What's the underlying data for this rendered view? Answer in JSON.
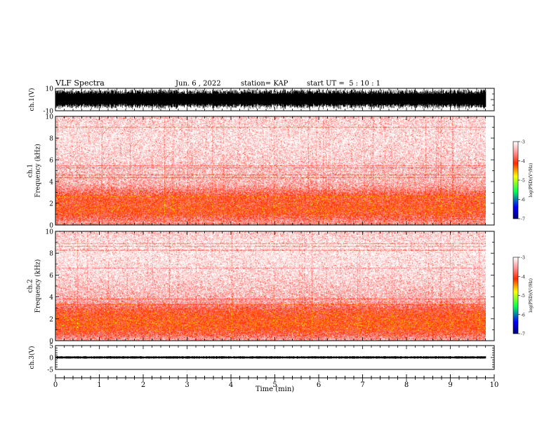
{
  "header": {
    "title": "VLF Spectra",
    "date": "Jun. 6 , 2022",
    "station": "station= KAP",
    "start": "start UT =  5 : 10 : 1"
  },
  "chart_data": [
    {
      "type": "line",
      "panel": "ch1-waveform",
      "ylabel": "ch.1(V)",
      "ylim": [
        -10,
        10
      ],
      "y_ticks": [
        "10",
        "-10"
      ],
      "x_range": [
        0,
        10
      ],
      "data_end_min": 9.8,
      "series": [
        {
          "values_range": [
            -10,
            10
          ],
          "description_values": "dense broadband noise saturating the full range"
        }
      ]
    },
    {
      "type": "heatmap",
      "panel": "ch1-spectrogram",
      "ylabel": "ch.1\nFrequency (kHz)",
      "ylim": [
        0,
        10
      ],
      "y_ticks": [
        "0",
        "2",
        "4",
        "6",
        "8",
        "10"
      ],
      "x_range": [
        0,
        9.8
      ],
      "profile_kHz": [
        0,
        0.5,
        1,
        1.5,
        2,
        2.5,
        3,
        3.5,
        4,
        5,
        6,
        7,
        8,
        9,
        10
      ],
      "profile_logPSD": [
        -3.4,
        -3.7,
        -3.95,
        -4.05,
        -3.95,
        -3.95,
        -3.75,
        -3.5,
        -3.35,
        -3.3,
        -3.2,
        -3.15,
        -3.1,
        -3.15,
        -3.2
      ],
      "colorbar": {
        "label": "log(PSD)(V²/Hz)",
        "min": -7,
        "max": -3,
        "ticks": [
          "-3",
          "-4",
          "-5",
          "-6",
          "-7"
        ]
      }
    },
    {
      "type": "heatmap",
      "panel": "ch2-spectrogram",
      "ylabel": "ch.2\nFrequency (kHz)",
      "ylim": [
        0,
        10
      ],
      "y_ticks": [
        "0",
        "2",
        "4",
        "6",
        "8",
        "10"
      ],
      "x_range": [
        0,
        9.8
      ],
      "profile_kHz": [
        0,
        0.5,
        1,
        1.5,
        2,
        2.5,
        3,
        3.5,
        4,
        5,
        6,
        7,
        8,
        9,
        10
      ],
      "profile_logPSD": [
        -3.4,
        -3.75,
        -4.0,
        -4.1,
        -4.05,
        -4.0,
        -3.8,
        -3.5,
        -3.35,
        -3.25,
        -3.15,
        -3.1,
        -3.05,
        -3.1,
        -3.2
      ],
      "colorbar": {
        "label": "log(PSD)(V²/Hz)",
        "min": -7,
        "max": -3,
        "ticks": [
          "-3",
          "-4",
          "-5",
          "-6",
          "-7"
        ]
      }
    },
    {
      "type": "line",
      "panel": "ch3-waveform",
      "ylabel": "ch.3(V)",
      "ylim": [
        -5,
        5
      ],
      "y_ticks": [
        "5",
        "0",
        "-5"
      ],
      "x_range": [
        0,
        10
      ],
      "data_end_min": 9.8,
      "series": [
        {
          "values_range": [
            -0.6,
            0.6
          ],
          "description_values": "narrow band of noise centred near 0 V"
        }
      ]
    }
  ],
  "xaxis": {
    "label": "Time (min)",
    "ticks": [
      "0",
      "1",
      "2",
      "3",
      "4",
      "5",
      "6",
      "7",
      "8",
      "9",
      "10"
    ],
    "range": [
      0,
      10
    ]
  },
  "colors": {
    "waveform": "#000000",
    "colormap": [
      "#00007f",
      "#0000ff",
      "#00ff00",
      "#ffff00",
      "#ff0000",
      "#ffffff"
    ]
  }
}
